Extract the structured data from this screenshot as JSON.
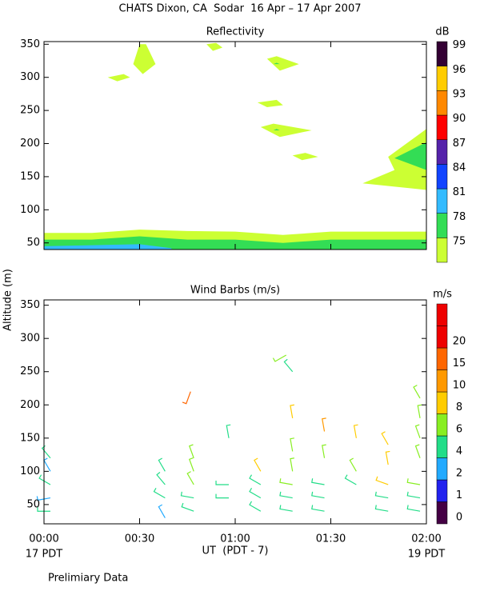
{
  "title": "CHATS Dixon, CA  Sodar  16 Apr – 17 Apr 2007",
  "y_label": "Altitude (m)",
  "x_label": "UT  (PDT - 7)",
  "x_left_note": "17 PDT",
  "x_right_note": "19 PDT",
  "footnote": "Prelimiary Data",
  "chart_data": [
    {
      "type": "contour",
      "title": "Reflectivity",
      "unit": "dB",
      "xlim": [
        0,
        120
      ],
      "xticks": [
        {
          "value": 0,
          "label": "00:00"
        },
        {
          "value": 30,
          "label": "00:30"
        },
        {
          "value": 60,
          "label": "01:00"
        },
        {
          "value": 90,
          "label": "01:30"
        },
        {
          "value": 120,
          "label": "02:00"
        }
      ],
      "ylim": [
        40,
        354
      ],
      "yticks": [
        50,
        100,
        150,
        200,
        250,
        300,
        350
      ],
      "levels": [
        75,
        78,
        81,
        84,
        87,
        90,
        93,
        96,
        99
      ],
      "colors": [
        "#ccff33",
        "#33dd55",
        "#33bbff",
        "#1144ff",
        "#5522aa",
        "#ff0000",
        "#ff8800",
        "#ffcc00",
        "#330033"
      ],
      "regions": [
        {
          "level": 75,
          "x": [
            0,
            15,
            30,
            45,
            60,
            75,
            90,
            105,
            120,
            120,
            0
          ],
          "y": [
            65,
            65,
            70,
            68,
            67,
            62,
            67,
            67,
            67,
            40,
            40
          ]
        },
        {
          "level": 78,
          "x": [
            0,
            15,
            30,
            45,
            60,
            75,
            90,
            105,
            120,
            120,
            0
          ],
          "y": [
            55,
            55,
            60,
            55,
            55,
            50,
            55,
            55,
            55,
            40,
            40
          ]
        },
        {
          "level": 81,
          "x": [
            0,
            30,
            40,
            40,
            0
          ],
          "y": [
            45,
            48,
            42,
            40,
            40
          ]
        },
        {
          "level": 75,
          "x": [
            28,
            30,
            32,
            35,
            31
          ],
          "y": [
            320,
            350,
            350,
            320,
            305
          ]
        },
        {
          "level": 75,
          "x": [
            20,
            25,
            27,
            23
          ],
          "y": [
            300,
            305,
            300,
            294
          ]
        },
        {
          "level": 75,
          "x": [
            51,
            54,
            56,
            53
          ],
          "y": [
            350,
            352,
            345,
            340
          ]
        },
        {
          "level": 75,
          "x": [
            70,
            73,
            80,
            74
          ],
          "y": [
            328,
            332,
            320,
            310
          ]
        },
        {
          "level": 75,
          "x": [
            67,
            73,
            75,
            70
          ],
          "y": [
            262,
            266,
            258,
            255
          ]
        },
        {
          "level": 75,
          "x": [
            68,
            72,
            84,
            74
          ],
          "y": [
            225,
            230,
            220,
            210
          ]
        },
        {
          "level": 75,
          "x": [
            78,
            82,
            86,
            81
          ],
          "y": [
            182,
            186,
            180,
            175
          ]
        },
        {
          "level": 75,
          "x": [
            100,
            110,
            108,
            120,
            120,
            110
          ],
          "y": [
            140,
            160,
            180,
            222,
            130,
            135
          ]
        },
        {
          "level": 78,
          "x": [
            110,
            120,
            120
          ],
          "y": [
            178,
            202,
            160
          ]
        },
        {
          "level": 78,
          "x": [
            72,
            73,
            74
          ],
          "y": [
            220,
            222,
            220
          ]
        },
        {
          "level": 78,
          "x": [
            72,
            73,
            74
          ],
          "y": [
            320,
            322,
            320
          ]
        }
      ]
    },
    {
      "type": "barbs",
      "title": "Wind Barbs (m/s)",
      "unit": "m/s",
      "xlim": [
        0,
        120
      ],
      "xticks": [
        {
          "value": 0,
          "label": "00:00"
        },
        {
          "value": 30,
          "label": "00:30"
        },
        {
          "value": 60,
          "label": "01:00"
        },
        {
          "value": 90,
          "label": "01:30"
        },
        {
          "value": 120,
          "label": "02:00"
        }
      ],
      "ylim": [
        21,
        358
      ],
      "yticks": [
        50,
        100,
        150,
        200,
        250,
        300,
        350
      ],
      "levels": [
        0,
        1,
        2,
        4,
        6,
        8,
        10,
        15,
        20
      ],
      "colors": [
        "#440044",
        "#2222ee",
        "#22aaff",
        "#22dd88",
        "#88ee22",
        "#ffcc00",
        "#ff9900",
        "#ff6600",
        "#ee0000",
        "#ee0000"
      ],
      "x": [
        2,
        2,
        2,
        2,
        2,
        38,
        38,
        38,
        38,
        47,
        47,
        47,
        47,
        47,
        46,
        58,
        58,
        58,
        68,
        68,
        68,
        68,
        78,
        78,
        78,
        78,
        78,
        78,
        78,
        76,
        88,
        88,
        88,
        88,
        88,
        98,
        98,
        98,
        108,
        108,
        108,
        108,
        108,
        118,
        118,
        118,
        118,
        118,
        118,
        118
      ],
      "y": [
        40,
        60,
        80,
        100,
        120,
        30,
        60,
        80,
        100,
        40,
        60,
        80,
        100,
        120,
        220,
        60,
        80,
        150,
        40,
        60,
        80,
        100,
        40,
        60,
        80,
        100,
        130,
        180,
        250,
        275,
        40,
        60,
        80,
        120,
        160,
        80,
        100,
        150,
        40,
        60,
        80,
        110,
        140,
        40,
        60,
        80,
        120,
        150,
        180,
        210
      ],
      "speed": [
        4,
        3,
        4,
        3,
        4,
        3,
        4,
        4,
        5,
        5,
        5,
        6,
        6,
        6,
        15,
        4,
        4,
        4,
        4,
        4,
        5,
        8,
        4,
        4,
        6,
        6,
        6,
        8,
        4,
        6,
        4,
        4,
        5,
        6,
        10,
        5,
        6,
        8,
        4,
        4,
        8,
        8,
        8,
        4,
        4,
        6,
        6,
        6,
        6,
        6
      ],
      "direction": [
        270,
        260,
        300,
        330,
        320,
        330,
        300,
        320,
        330,
        290,
        280,
        330,
        340,
        340,
        200,
        270,
        270,
        350,
        300,
        300,
        300,
        330,
        280,
        280,
        280,
        350,
        350,
        350,
        320,
        240,
        280,
        280,
        280,
        350,
        350,
        300,
        330,
        350,
        280,
        280,
        290,
        350,
        330,
        280,
        280,
        280,
        340,
        340,
        350,
        330
      ]
    }
  ]
}
